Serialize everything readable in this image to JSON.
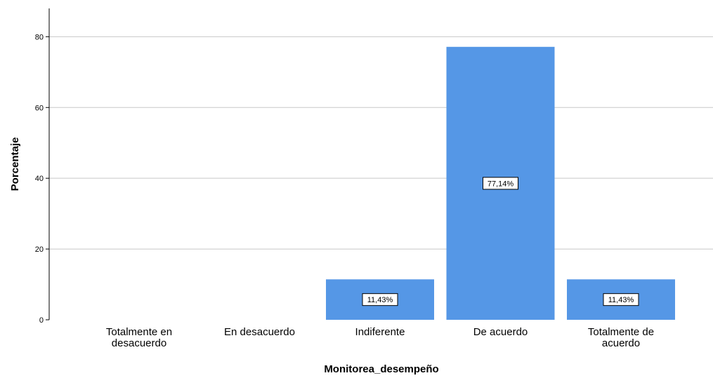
{
  "chart_data": {
    "type": "bar",
    "categories": [
      "Totalmente en desacuerdo",
      "En desacuerdo",
      "Indiferente",
      "De acuerdo",
      "Totalmente de acuerdo"
    ],
    "category_lines": [
      [
        "Totalmente en",
        "desacuerdo"
      ],
      [
        "En desacuerdo"
      ],
      [
        "Indiferente"
      ],
      [
        "De acuerdo"
      ],
      [
        "Totalmente de",
        "acuerdo"
      ]
    ],
    "values": [
      0,
      0,
      11.43,
      77.14,
      11.43
    ],
    "data_labels": [
      "",
      "",
      "11,43%",
      "77,14%",
      "11,43%"
    ],
    "xlabel": "Monitorea_desempeño",
    "ylabel": "Porcentaje",
    "ylim": [
      0,
      88
    ],
    "yticks": [
      0,
      20,
      40,
      60,
      80
    ],
    "grid": true,
    "legend": "none",
    "bar_color": "#5597e6",
    "grid_color": "#c8c8c8"
  }
}
